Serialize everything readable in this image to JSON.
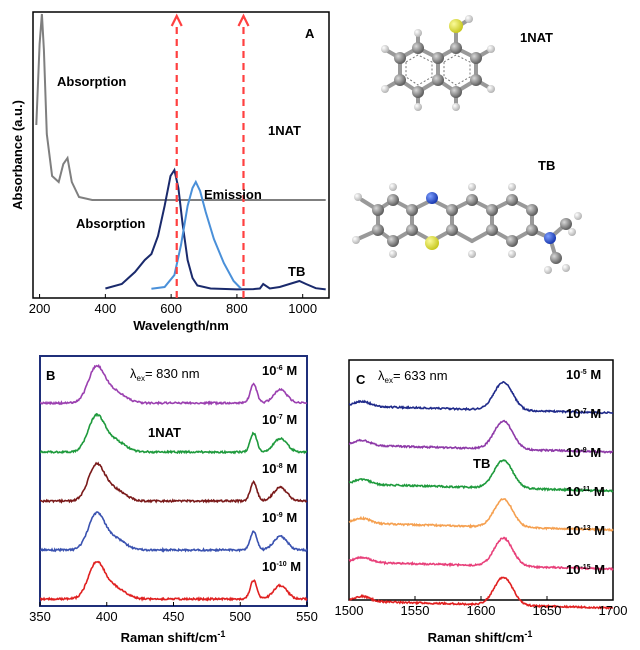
{
  "chart_data": [
    {
      "panel": "A",
      "type": "line",
      "ylabel": "Absorbance (a.u.)",
      "xlabel": "Wavelength/nm",
      "xlim": [
        180,
        1080
      ],
      "x_ticks": [
        200,
        400,
        600,
        800,
        1000
      ],
      "markers": [
        {
          "x": 617,
          "color": "#ff4040"
        },
        {
          "x": 820,
          "color": "#ff4040"
        }
      ],
      "annotations": [
        {
          "text": "Absorption",
          "near": "1NAT absorption peak"
        },
        {
          "text": "1NAT",
          "near": "upper trace right"
        },
        {
          "text": "Absorption",
          "near": "TB absorption band"
        },
        {
          "text": "Emission",
          "near": "TB emission band"
        },
        {
          "text": "TB",
          "near": "lower trace right"
        }
      ],
      "series": [
        {
          "name": "1NAT",
          "color": "#7f7f7f",
          "points": [
            [
              190,
              0.55
            ],
            [
              200,
              0.82
            ],
            [
              207,
              0.92
            ],
            [
              213,
              0.8
            ],
            [
              222,
              0.52
            ],
            [
              238,
              0.38
            ],
            [
              258,
              0.36
            ],
            [
              272,
              0.42
            ],
            [
              285,
              0.44
            ],
            [
              298,
              0.36
            ],
            [
              320,
              0.31
            ],
            [
              360,
              0.3
            ],
            [
              450,
              0.3
            ],
            [
              600,
              0.3
            ],
            [
              800,
              0.3
            ],
            [
              1070,
              0.3
            ]
          ]
        },
        {
          "name": "TB absorption",
          "color": "#1a2a6c",
          "points": [
            [
              400,
              0.005
            ],
            [
              450,
              0.02
            ],
            [
              490,
              0.06
            ],
            [
              520,
              0.1
            ],
            [
              540,
              0.12
            ],
            [
              560,
              0.18
            ],
            [
              580,
              0.28
            ],
            [
              598,
              0.38
            ],
            [
              610,
              0.4
            ],
            [
              622,
              0.34
            ],
            [
              635,
              0.22
            ],
            [
              650,
              0.1
            ],
            [
              665,
              0.04
            ],
            [
              680,
              0.015
            ],
            [
              720,
              0.005
            ],
            [
              800,
              0.002
            ],
            [
              850,
              0.003
            ],
            [
              870,
              0.005
            ],
            [
              880,
              0.02
            ],
            [
              900,
              0.005
            ],
            [
              930,
              0.01
            ],
            [
              960,
              0.02
            ],
            [
              990,
              0.03
            ],
            [
              1010,
              0.02
            ],
            [
              1040,
              0.006
            ],
            [
              1070,
              0.002
            ]
          ]
        },
        {
          "name": "TB emission",
          "color": "#4a90d9",
          "points": [
            [
              540,
              0.004
            ],
            [
              580,
              0.01
            ],
            [
              610,
              0.05
            ],
            [
              630,
              0.15
            ],
            [
              650,
              0.28
            ],
            [
              665,
              0.34
            ],
            [
              675,
              0.36
            ],
            [
              688,
              0.33
            ],
            [
              705,
              0.26
            ],
            [
              730,
              0.17
            ],
            [
              760,
              0.09
            ],
            [
              790,
              0.03
            ],
            [
              812,
              0.005
            ]
          ]
        }
      ]
    },
    {
      "panel": "B",
      "type": "line",
      "excitation_prefix": "λ",
      "excitation_subscript": "ex",
      "excitation_value": "= 830 nm",
      "xlabel": "Raman shift/cm",
      "xlabel_sup": "-1",
      "xlim": [
        350,
        550
      ],
      "x_ticks": [
        350,
        400,
        450,
        500,
        550
      ],
      "annotations": [
        {
          "text": "1NAT"
        }
      ],
      "peaks": [
        {
          "center": 392,
          "height": 1.0,
          "width": 6
        },
        {
          "center": 405,
          "height": 0.35,
          "width": 8
        },
        {
          "center": 510,
          "height": 0.55,
          "width": 2.5
        },
        {
          "center": 530,
          "height": 0.4,
          "width": 5
        }
      ],
      "series": [
        {
          "name": "10-6 M",
          "base": "10",
          "exp": "-6",
          "unit": "M",
          "color": "#9b40b0"
        },
        {
          "name": "10-7 M",
          "base": "10",
          "exp": "-7",
          "unit": "M",
          "color": "#1e9a3c"
        },
        {
          "name": "10-8 M",
          "base": "10",
          "exp": "-8",
          "unit": "M",
          "color": "#7a1a1a"
        },
        {
          "name": "10-9 M",
          "base": "10",
          "exp": "-9",
          "unit": "M",
          "color": "#3a52b0"
        },
        {
          "name": "10-10 M",
          "base": "10",
          "exp": "-10",
          "unit": "M",
          "color": "#e02020"
        }
      ]
    },
    {
      "panel": "C",
      "type": "line",
      "excitation_prefix": "λ",
      "excitation_subscript": "ex",
      "excitation_value": "= 633 nm",
      "xlabel": "Raman shift/cm",
      "xlabel_sup": "-1",
      "xlim": [
        1500,
        1700
      ],
      "x_ticks": [
        1500,
        1550,
        1600,
        1650,
        1700
      ],
      "annotations": [
        {
          "text": "TB"
        }
      ],
      "peaks": [
        {
          "center": 1617,
          "height": 1.0,
          "width": 7
        },
        {
          "center": 1510,
          "height": 0.18,
          "width": 6
        }
      ],
      "series": [
        {
          "name": "10-5 M",
          "base": "10",
          "exp": "-5",
          "unit": "M",
          "color": "#1f2a8a"
        },
        {
          "name": "10-7 M",
          "base": "10",
          "exp": "-7",
          "unit": "M",
          "color": "#8e3aa8"
        },
        {
          "name": "10-9 M",
          "base": "10",
          "exp": "-9",
          "unit": "M",
          "color": "#1e9a3c"
        },
        {
          "name": "10-11 M",
          "base": "10",
          "exp": "-11",
          "unit": "M",
          "color": "#f5a050"
        },
        {
          "name": "10-13 M",
          "base": "10",
          "exp": "-13",
          "unit": "M",
          "color": "#e8407a"
        },
        {
          "name": "10-15 M",
          "base": "10",
          "exp": "-15",
          "unit": "M",
          "color": "#e02020"
        }
      ]
    }
  ],
  "molecules": [
    {
      "label": "1NAT"
    },
    {
      "label": "TB"
    }
  ]
}
